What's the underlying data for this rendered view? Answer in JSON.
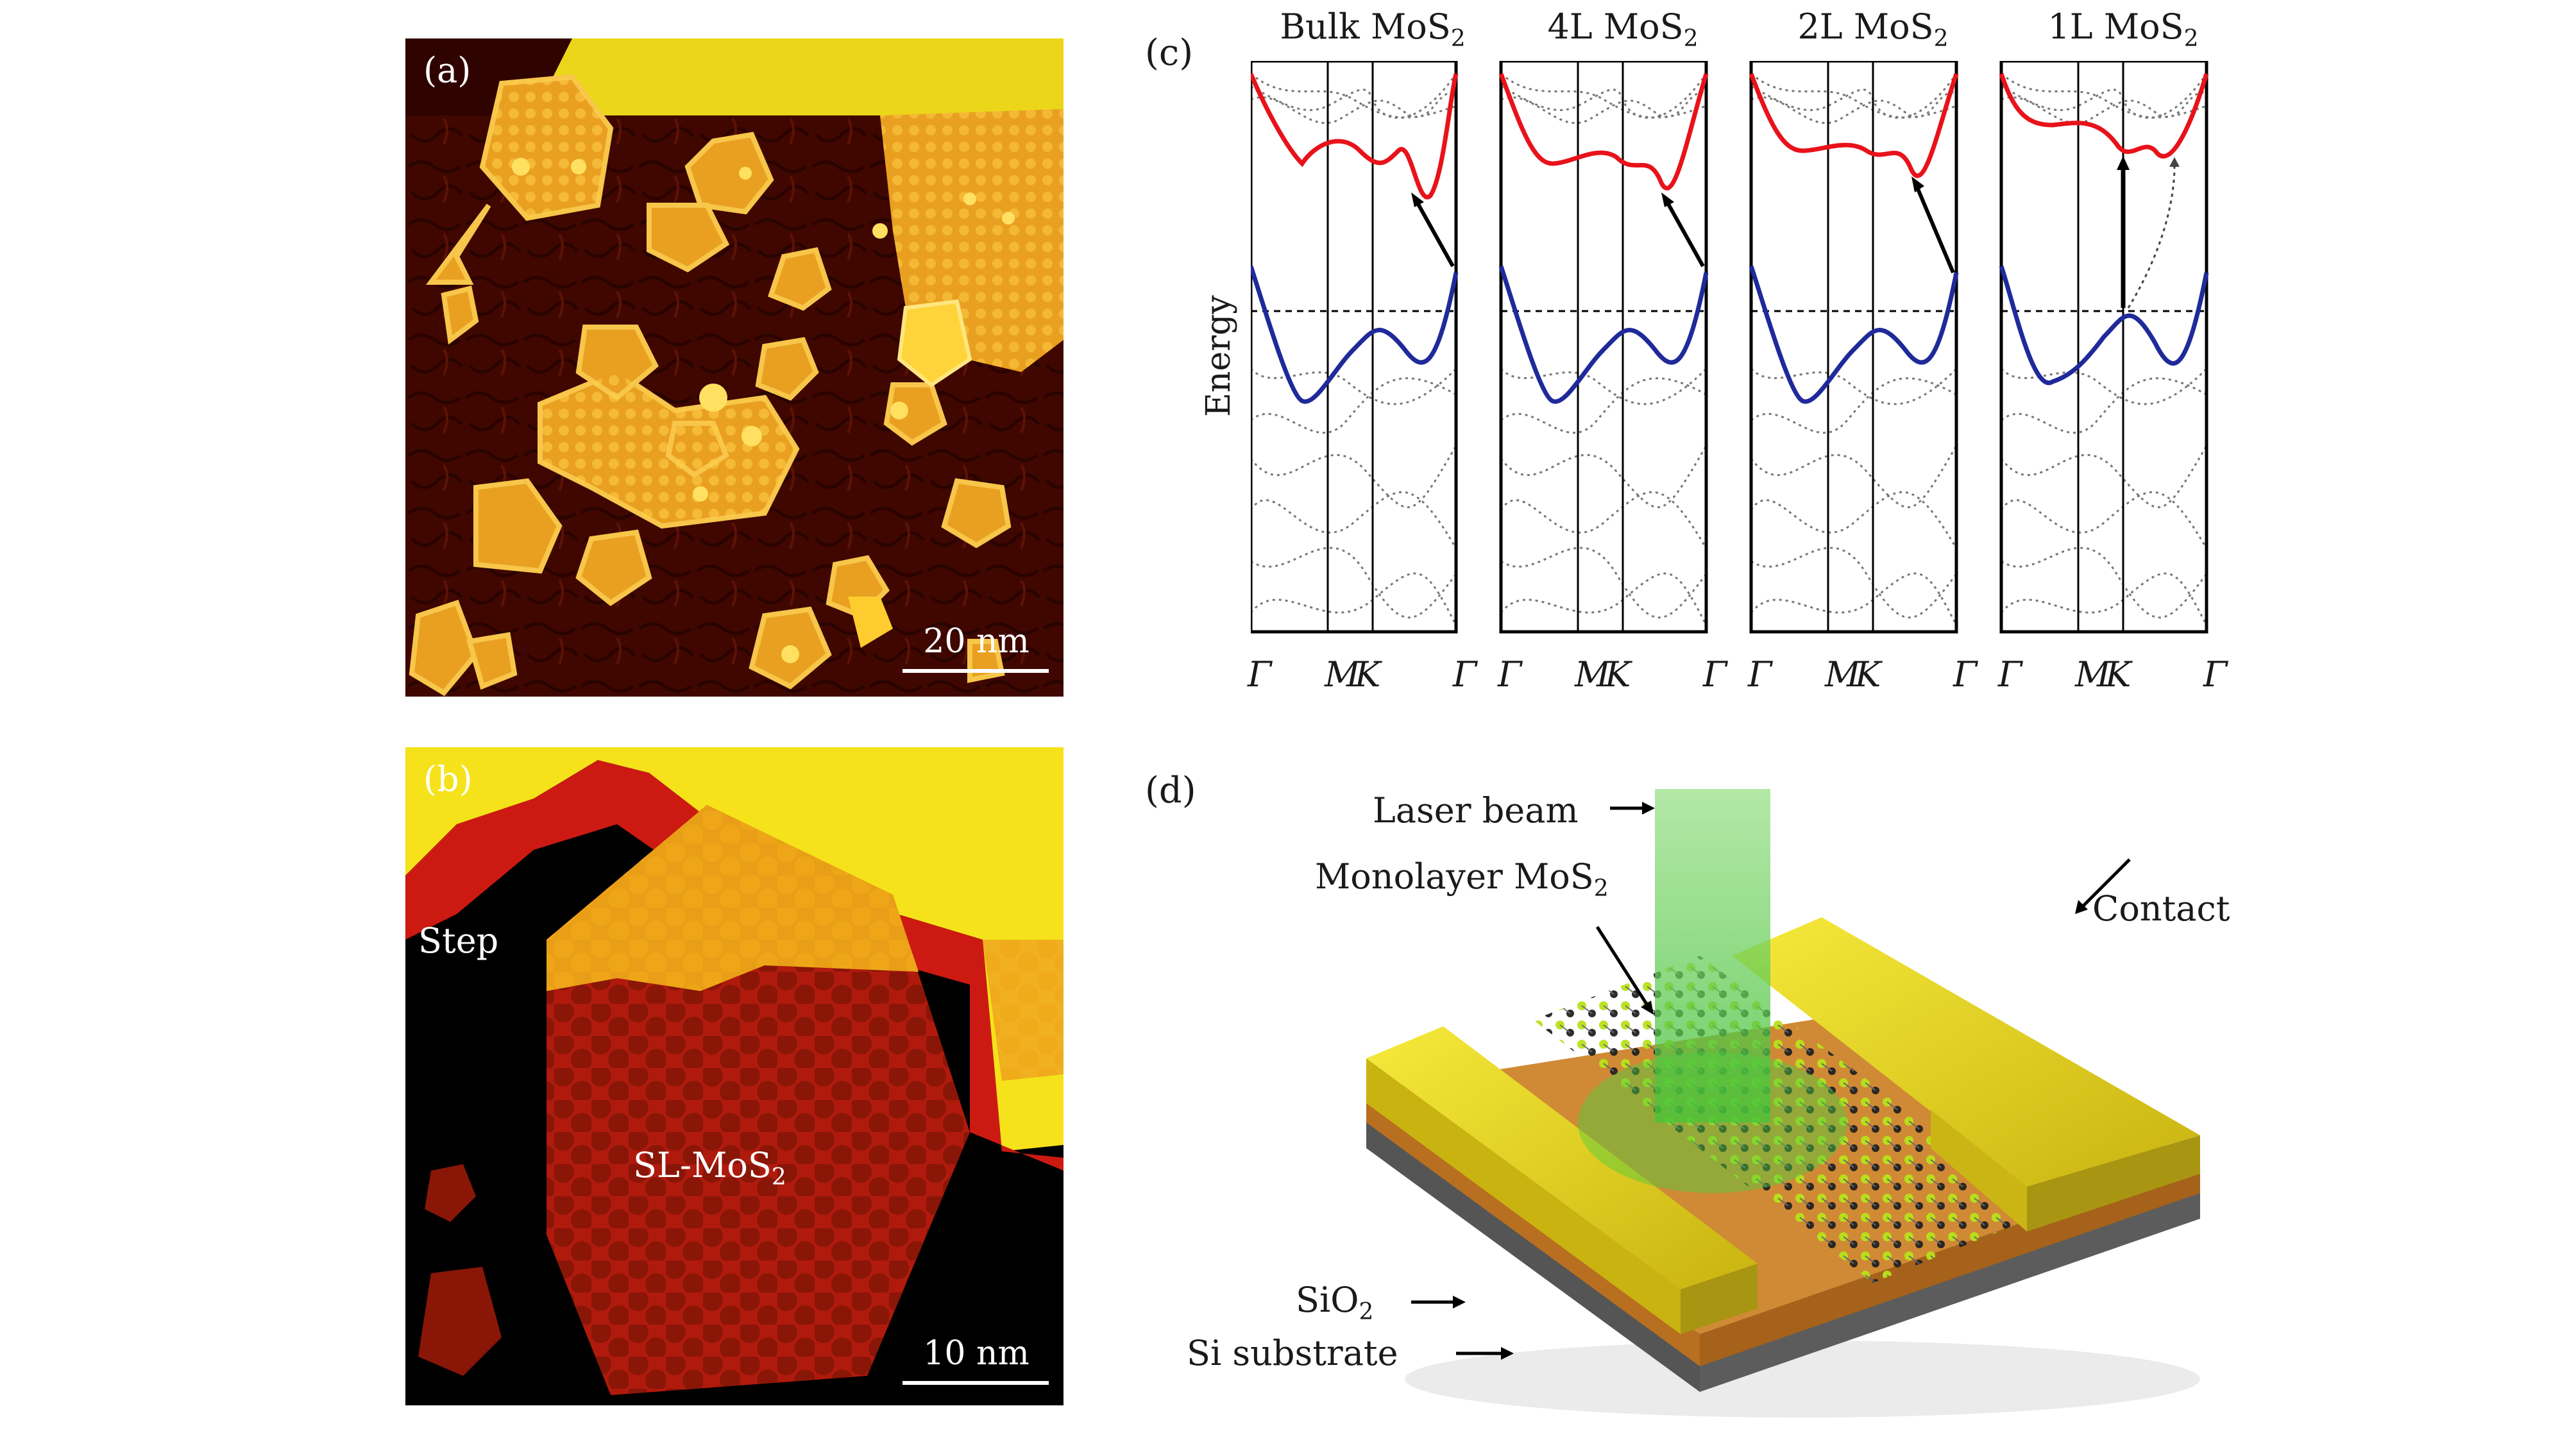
{
  "panels": {
    "a": {
      "label": "(a)",
      "scale_label": "20 nm"
    },
    "b": {
      "label": "(b)",
      "step_label": "Step",
      "island_label_main": "SL-MoS",
      "island_label_sub": "2",
      "scale_label": "10 nm"
    },
    "c": {
      "label": "(c)",
      "y_axis_label": "Energy",
      "band_structures": [
        {
          "title_main": "Bulk MoS",
          "title_sub": "2",
          "kpoints": [
            "Γ",
            "M",
            "K",
            "Γ"
          ]
        },
        {
          "title_main": "4L MoS",
          "title_sub": "2",
          "kpoints": [
            "Γ",
            "M",
            "K",
            "Γ"
          ]
        },
        {
          "title_main": "2L MoS",
          "title_sub": "2",
          "kpoints": [
            "Γ",
            "M",
            "K",
            "Γ"
          ]
        },
        {
          "title_main": "1L MoS",
          "title_sub": "2",
          "kpoints": [
            "Γ",
            "M",
            "K",
            "Γ"
          ]
        }
      ]
    },
    "d": {
      "label": "(d)",
      "laser_label": "Laser beam",
      "monolayer_label_main": "Monolayer MoS",
      "monolayer_label_sub": "2",
      "contact_label": "Contact",
      "sio2_label_main": "SiO",
      "sio2_label_sub": "2",
      "si_label": "Si substrate"
    }
  },
  "colors": {
    "conduction_band": "#e8121b",
    "valence_band": "#1f2a9a",
    "stm_dark": "#3a0500",
    "stm_bright": "#f3b020",
    "gold_contact": "#e6d21a",
    "laser": "#7fd36a"
  }
}
